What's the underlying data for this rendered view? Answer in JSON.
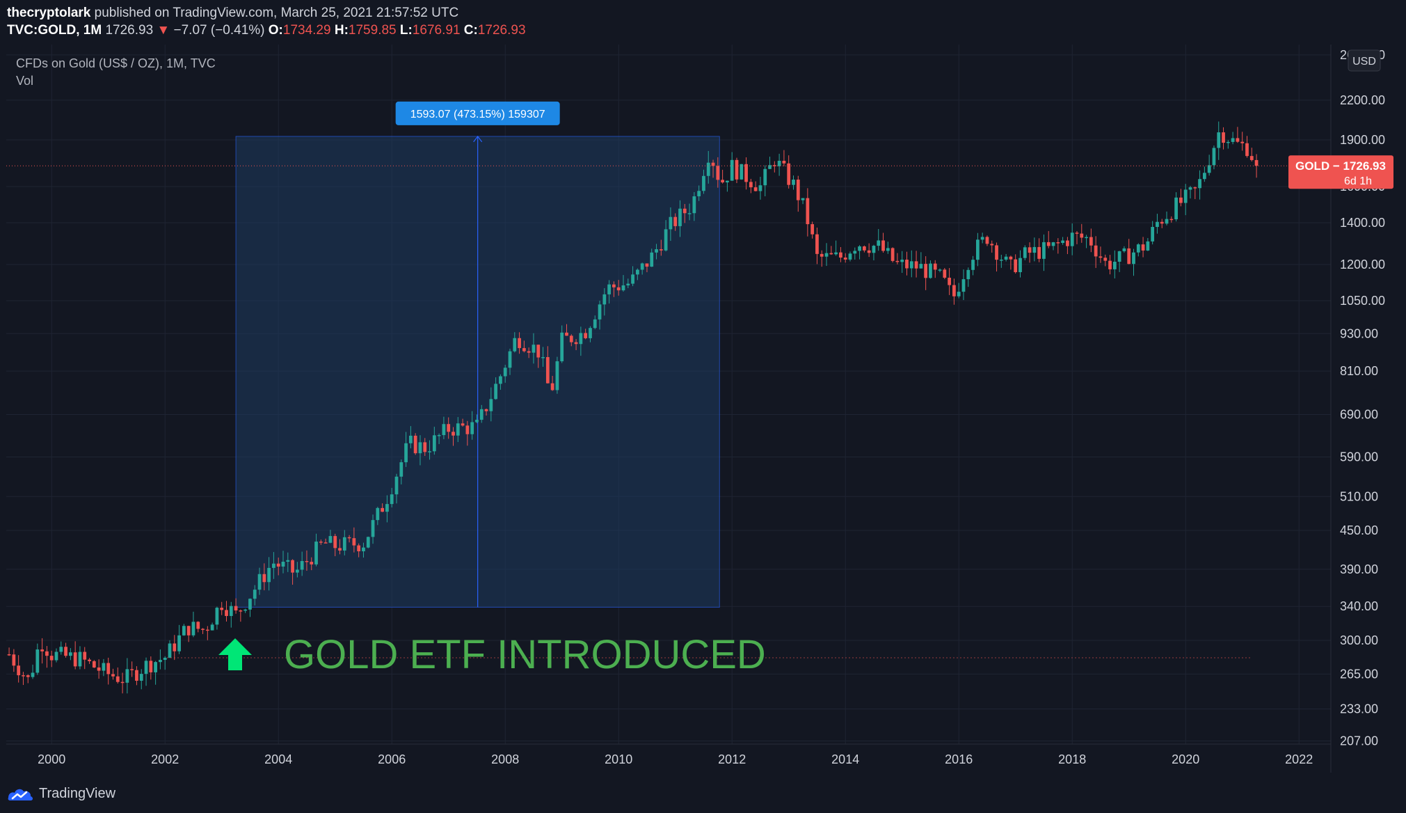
{
  "header": {
    "publisher": "thecryptolark",
    "published_text": "published on TradingView.com, March 25, 2021 21:57:52 UTC",
    "symbol": "TVC:GOLD, 1M",
    "last": "1726.93",
    "change": "−7.07 (−0.41%)",
    "open_label": "O:",
    "open": "1734.29",
    "high_label": "H:",
    "high": "1759.85",
    "low_label": "L:",
    "low": "1676.91",
    "close_label": "C:",
    "close": "1726.93"
  },
  "legend": {
    "title": "CFDs on Gold (US$ / OZ), 1M, TVC",
    "volume": "Vol"
  },
  "currency_button": "USD",
  "price_label": {
    "text": "GOLD − 1726.93",
    "countdown": "6d 1h"
  },
  "measure": {
    "label": "1593.07 (473.15%) 159307"
  },
  "annotation": {
    "text": "GOLD ETF INTRODUCED"
  },
  "footer": {
    "brand": "TradingView"
  },
  "colors": {
    "up": "#26a69a",
    "down": "#ef5350",
    "background": "#131722",
    "grid": "#1f2433",
    "annotation": "#4caf50",
    "measure_fill": "#1e3a5f",
    "measure_label": "#2962ff"
  },
  "chart_data": {
    "type": "candlestick",
    "y_scale": "log",
    "ylim": [
      207,
      2600
    ],
    "xlim": [
      1999.2,
      2023.5
    ],
    "y_ticks": [
      "2600.00",
      "2200.00",
      "1900.00",
      "1600.00",
      "1400.00",
      "1200.00",
      "1050.00",
      "930.00",
      "810.00",
      "690.00",
      "590.00",
      "510.00",
      "450.00",
      "390.00",
      "340.00",
      "300.00",
      "265.00",
      "233.00",
      "207.00"
    ],
    "x_ticks": [
      "2000",
      "2002",
      "2004",
      "2006",
      "2008",
      "2010",
      "2012",
      "2014",
      "2016",
      "2018",
      "2020",
      "2022"
    ],
    "anchors": [
      [
        1999.25,
        285
      ],
      [
        1999.6,
        258
      ],
      [
        1999.8,
        300
      ],
      [
        2000.0,
        285
      ],
      [
        2000.5,
        280
      ],
      [
        2001.0,
        265
      ],
      [
        2001.3,
        260
      ],
      [
        2001.7,
        275
      ],
      [
        2002.0,
        282
      ],
      [
        2002.4,
        315
      ],
      [
        2002.7,
        312
      ],
      [
        2003.0,
        345
      ],
      [
        2003.25,
        330
      ],
      [
        2003.6,
        365
      ],
      [
        2003.9,
        400
      ],
      [
        2004.3,
        385
      ],
      [
        2004.8,
        430
      ],
      [
        2005.0,
        425
      ],
      [
        2005.5,
        430
      ],
      [
        2005.9,
        505
      ],
      [
        2006.3,
        620
      ],
      [
        2006.6,
        610
      ],
      [
        2007.0,
        655
      ],
      [
        2007.5,
        660
      ],
      [
        2007.9,
        790
      ],
      [
        2008.2,
        920
      ],
      [
        2008.6,
        870
      ],
      [
        2008.8,
        740
      ],
      [
        2009.0,
        905
      ],
      [
        2009.4,
        935
      ],
      [
        2009.8,
        1100
      ],
      [
        2010.2,
        1120
      ],
      [
        2010.6,
        1240
      ],
      [
        2010.9,
        1380
      ],
      [
        2011.3,
        1500
      ],
      [
        2011.6,
        1830
      ],
      [
        2011.8,
        1620
      ],
      [
        2012.0,
        1720
      ],
      [
        2012.5,
        1600
      ],
      [
        2012.75,
        1770
      ],
      [
        2013.1,
        1600
      ],
      [
        2013.3,
        1450
      ],
      [
        2013.5,
        1230
      ],
      [
        2013.9,
        1230
      ],
      [
        2014.2,
        1300
      ],
      [
        2014.6,
        1280
      ],
      [
        2014.9,
        1200
      ],
      [
        2015.3,
        1190
      ],
      [
        2015.7,
        1140
      ],
      [
        2015.9,
        1060
      ],
      [
        2016.2,
        1240
      ],
      [
        2016.5,
        1330
      ],
      [
        2016.9,
        1180
      ],
      [
        2017.2,
        1250
      ],
      [
        2017.6,
        1270
      ],
      [
        2018.0,
        1330
      ],
      [
        2018.3,
        1320
      ],
      [
        2018.6,
        1200
      ],
      [
        2018.9,
        1230
      ],
      [
        2019.3,
        1290
      ],
      [
        2019.5,
        1400
      ],
      [
        2019.8,
        1480
      ],
      [
        2020.2,
        1580
      ],
      [
        2020.6,
        1970
      ],
      [
        2020.9,
        1870
      ],
      [
        2021.1,
        1850
      ],
      [
        2021.25,
        1727
      ]
    ]
  }
}
